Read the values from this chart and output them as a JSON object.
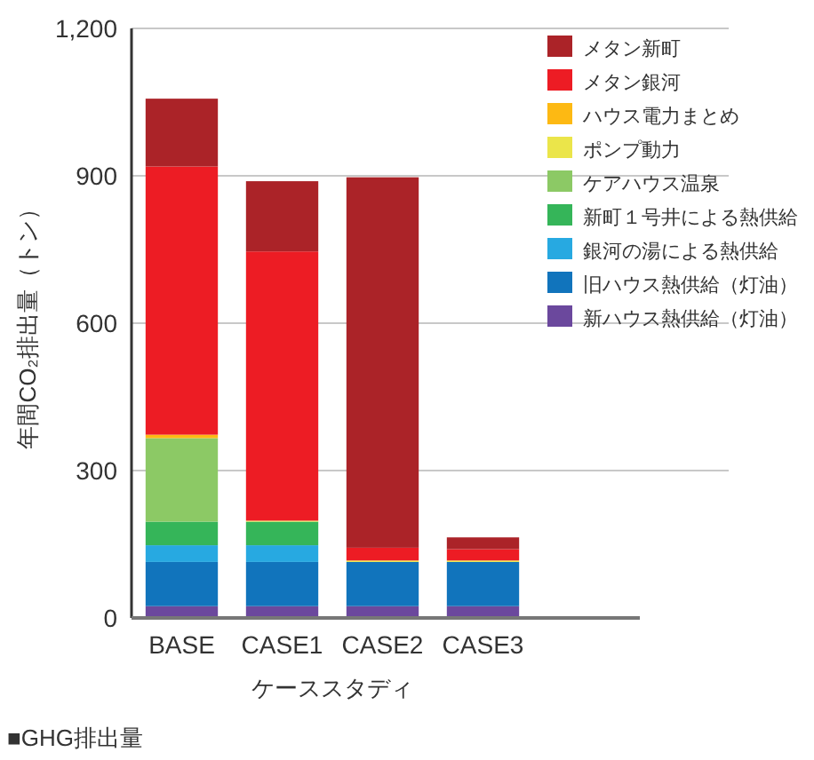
{
  "chart_data": {
    "type": "bar",
    "stacked": true,
    "xlabel": "ケーススタディ",
    "ylabel": "年間CO₂排出量（トン）",
    "annotations": [
      "■GHG排出量"
    ],
    "categories": [
      "BASE",
      "CASE1",
      "CASE2",
      "CASE3"
    ],
    "ylim": [
      0,
      1200
    ],
    "yticks": [
      0,
      300,
      600,
      900,
      {
        "value": 1200,
        "label": "1,200"
      }
    ],
    "grid": "y",
    "legend": "top right",
    "series": [
      {
        "name": "新ハウス熱供給（灯油）",
        "color": "#6b489d",
        "values": [
          24,
          24,
          24,
          24
        ]
      },
      {
        "name": "旧ハウス熱供給（灯油）",
        "color": "#1174bc",
        "values": [
          90,
          90,
          90,
          90
        ]
      },
      {
        "name": "銀河の湯による熱供給",
        "color": "#27a9e1",
        "values": [
          34,
          34,
          0,
          0
        ]
      },
      {
        "name": "新町１号井による熱供給",
        "color": "#35b559",
        "values": [
          48,
          48,
          0,
          0
        ]
      },
      {
        "name": "ケアハウス温泉",
        "color": "#8cc965",
        "values": [
          170,
          0,
          0,
          0
        ]
      },
      {
        "name": "ポンプ動力",
        "color": "#ebe54a",
        "values": [
          0,
          2,
          3,
          3
        ]
      },
      {
        "name": "ハウス電力まとめ",
        "color": "#fdb913",
        "values": [
          7,
          0,
          0,
          0
        ]
      },
      {
        "name": "メタン銀河",
        "color": "#ed1c24",
        "values": [
          546,
          548,
          26,
          23
        ]
      },
      {
        "name": "メタン新町",
        "color": "#ab2328",
        "values": [
          138,
          143,
          754,
          24
        ]
      }
    ]
  }
}
